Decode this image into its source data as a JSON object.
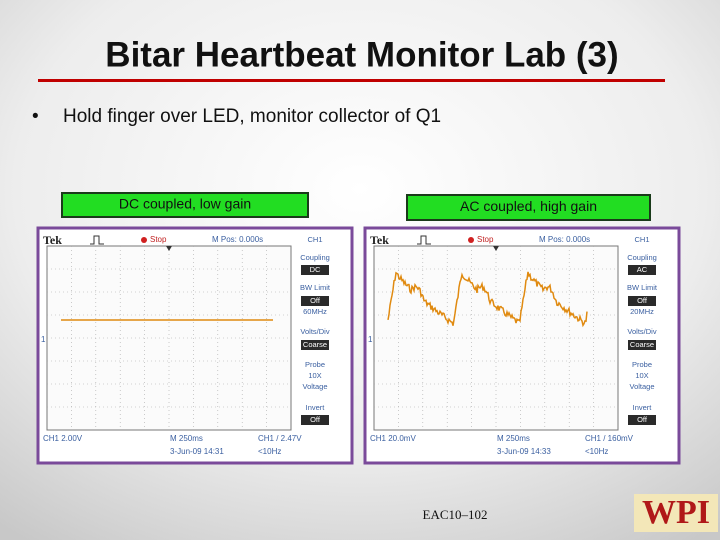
{
  "title": "Bitar Heartbeat Monitor Lab (3)",
  "bullet": "Hold finger over LED, monitor collector of Q1",
  "scopes": [
    {
      "label": "DC coupled, low gain",
      "brand": "Tek",
      "status": "Stop",
      "position": "M Pos: 0.000s",
      "channel": "CH1",
      "ground_marker": "1",
      "menu": [
        {
          "label": "Coupling",
          "value": "DC"
        },
        {
          "label": "BW Limit",
          "value": "Off",
          "note": "60MHz"
        },
        {
          "label": "Volts/Div",
          "value": "Coarse"
        },
        {
          "label": "Probe",
          "value": "10X",
          "note": "Voltage"
        },
        {
          "label": "Invert",
          "value": "Off"
        }
      ],
      "channel_scale": "CH1  2.00V",
      "timebase": "M 250ms",
      "date": "3-Jun-09 14:31",
      "trigger": "CH1 / 2.47V",
      "frequency": "<10Hz"
    },
    {
      "label": "AC coupled, high gain",
      "brand": "Tek",
      "status": "Stop",
      "position": "M Pos: 0.000s",
      "channel": "CH1",
      "ground_marker": "1",
      "menu": [
        {
          "label": "Coupling",
          "value": "AC"
        },
        {
          "label": "BW Limit",
          "value": "Off",
          "note": "20MHz"
        },
        {
          "label": "Volts/Div",
          "value": "Coarse"
        },
        {
          "label": "Probe",
          "value": "10X",
          "note": "Voltage"
        },
        {
          "label": "Invert",
          "value": "Off"
        }
      ],
      "channel_scale": "CH1  20.0mV",
      "timebase": "M 250ms",
      "date": "3-Jun-09 14:33",
      "trigger": "CH1 / 160mV",
      "frequency": "<10Hz"
    }
  ],
  "footer": "EAC10–102",
  "logo": "WPI"
}
